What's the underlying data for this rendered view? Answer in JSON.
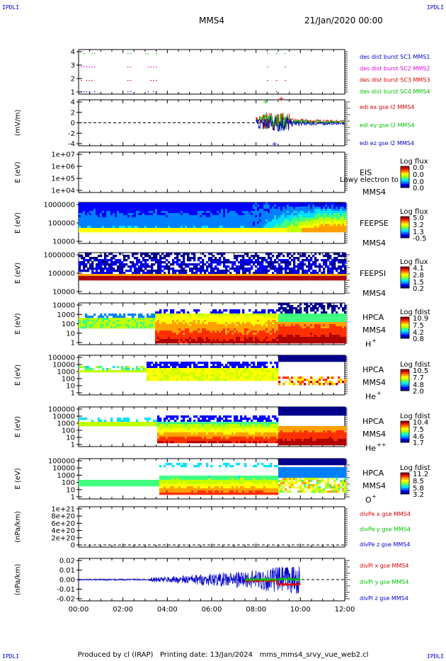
{
  "header": {
    "corner_tl": "IPDLI",
    "corner_tr": "IPDLI",
    "corner_bl": "IPDLI",
    "corner_br": "IPDLI",
    "spacecraft": "MMS4",
    "date": "21/Jan/2020 00:00"
  },
  "footer": {
    "producer": "Produced by cl (IRAP)",
    "printing": "Printing date: 13/Jan/2024",
    "file": "mms_mms4_srvy_vue_web2.cl"
  },
  "colors": {
    "blue": "#0000cc",
    "red": "#dd0000",
    "green": "#00c000",
    "magenta": "#dd00dd",
    "spectrogram": [
      "#00008b",
      "#0000ff",
      "#0080ff",
      "#00e0ff",
      "#40ff80",
      "#c0ff00",
      "#ffff00",
      "#ffa000",
      "#ff3000",
      "#b00000"
    ]
  },
  "chart_data": {
    "type": "multi-panel",
    "x_axis": {
      "ticks": [
        "00:00",
        "02:00",
        "04:00",
        "06:00",
        "08:00",
        "10:00",
        "12:00"
      ],
      "range_hours": [
        0,
        12
      ]
    },
    "panels": [
      {
        "id": "burst",
        "yticks": [
          "4",
          "3",
          "2",
          "1"
        ],
        "legend": [
          {
            "text": "des dist burst SC1 MMS1",
            "color": "blue"
          },
          {
            "text": "des dist burst SC2 MMS2",
            "color": "magenta"
          },
          {
            "text": "des dist burst SC3 MMS3",
            "color": "red"
          },
          {
            "text": "des dist burst SC4 MMS4",
            "color": "green"
          }
        ],
        "burst_intervals_hours": [
          [
            0.1,
            0.7
          ],
          [
            2.2,
            2.4
          ],
          [
            3.0,
            3.5
          ],
          [
            8.5,
            8.6
          ],
          [
            8.9,
            9.0
          ],
          [
            9.3,
            9.4
          ]
        ]
      },
      {
        "id": "edi",
        "ylabel": "(mV/m)",
        "yticks": [
          "4",
          "2",
          "0",
          "-2",
          "-4"
        ],
        "ylim": [
          -5,
          5
        ],
        "legend": [
          {
            "text": "edi ex gse l2 MMS4",
            "color": "red"
          },
          {
            "text": "edi ey gse l2 MMS4",
            "color": "green"
          },
          {
            "text": "edi ez gse l2 MMS4",
            "color": "blue"
          }
        ]
      },
      {
        "id": "eis",
        "ylabel": "E (eV)",
        "yticks": [
          "1e+07",
          "1e+06",
          "1e+05",
          "1e+04"
        ],
        "instrument": "EIS",
        "side_label": "MMS4",
        "overlay_text": "Lowy electron to",
        "colorbar": {
          "title": "Log flux",
          "ticks": [
            "0.0",
            "0.0",
            "0.0",
            "0.0"
          ]
        }
      },
      {
        "id": "feepse",
        "ylabel": "E (eV)",
        "yticks": [
          "1000000",
          "100000",
          "10000"
        ],
        "instrument": "FEEPSE",
        "side_label": "MMS4",
        "colorbar": {
          "title": "Log flux",
          "ticks": [
            "5.0",
            "3.2",
            "1.3",
            "-0.5"
          ]
        }
      },
      {
        "id": "feepsi",
        "ylabel": "E (eV)",
        "yticks": [
          "1000000",
          "100000",
          "10000"
        ],
        "instrument": "FEEPSI",
        "side_label": "MMS4",
        "colorbar": {
          "title": "Log flux",
          "ticks": [
            "4.1",
            "2.8",
            "1.5",
            "0.2"
          ]
        }
      },
      {
        "id": "hpca_h",
        "ylabel": "E (eV)",
        "yticks": [
          "10000",
          "1000",
          "100",
          "10",
          "1"
        ],
        "instrument": "HPCA",
        "side_label": "MMS4",
        "species": "H",
        "species_sup": "+",
        "colorbar": {
          "title": "Log fdist",
          "ticks": [
            "10.9",
            "7.5",
            "4.2",
            "0.8"
          ]
        }
      },
      {
        "id": "hpca_he",
        "ylabel": "E (eV)",
        "yticks": [
          "100000",
          "10000",
          "1000",
          "100",
          "10",
          "1"
        ],
        "instrument": "HPCA",
        "side_label": "MMS4",
        "species": "He",
        "species_sup": "+",
        "colorbar": {
          "title": "Log fdist",
          "ticks": [
            "10.5",
            "7.7",
            "4.8",
            "2.0"
          ]
        }
      },
      {
        "id": "hpca_hepp",
        "ylabel": "E (eV)",
        "yticks": [
          "100000",
          "10000",
          "1000",
          "100",
          "10",
          "1"
        ],
        "instrument": "HPCA",
        "side_label": "MMS4",
        "species": "He",
        "species_sup": "++",
        "colorbar": {
          "title": "Log fdist",
          "ticks": [
            "10.4",
            "7.5",
            "4.6",
            "1.7"
          ]
        }
      },
      {
        "id": "hpca_o",
        "ylabel": "E (eV)",
        "yticks": [
          "100000",
          "10000",
          "1000",
          "100",
          "10",
          "1"
        ],
        "instrument": "HPCA",
        "side_label": "MMS4",
        "species": "O",
        "species_sup": "+",
        "colorbar": {
          "title": "Log fdist",
          "ticks": [
            "11.2",
            "8.5",
            "5.8",
            "3.2"
          ]
        }
      },
      {
        "id": "divpe",
        "ylabel": "(nPa/km)",
        "yticks": [
          "1e+21",
          "8e+20",
          "6e+20",
          "4e+20",
          "2e+20",
          "0"
        ],
        "legend": [
          {
            "text": "divPe x gse MMS4",
            "color": "red"
          },
          {
            "text": "divPe y gse MMS4",
            "color": "green"
          },
          {
            "text": "divPe z gse MMS4",
            "color": "blue"
          }
        ]
      },
      {
        "id": "divpi",
        "ylabel": "(nPa/km)",
        "yticks": [
          "0.02",
          "0.01",
          "0.00",
          "-0.01",
          "-0.02"
        ],
        "ylim": [
          -0.025,
          0.025
        ],
        "legend": [
          {
            "text": "divPi x gse MMS4",
            "color": "red"
          },
          {
            "text": "divPi y gse MMS4",
            "color": "green"
          },
          {
            "text": "divPi z gse MMS4",
            "color": "blue"
          }
        ]
      }
    ]
  }
}
